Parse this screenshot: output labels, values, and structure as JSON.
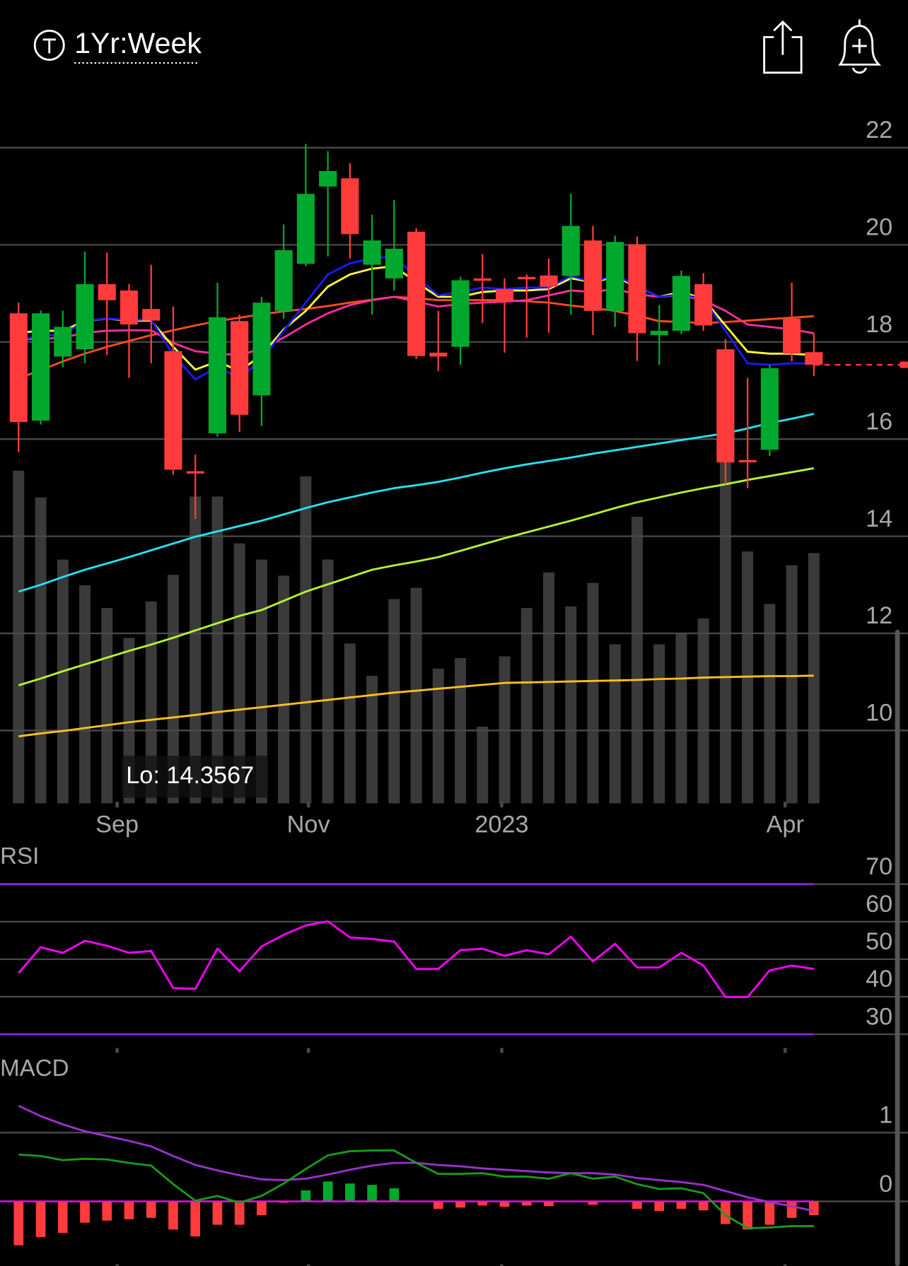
{
  "header": {
    "title": "1Yr:Week"
  },
  "chart_data": [
    {
      "type": "candlestick",
      "x": [
        0,
        1,
        2,
        3,
        4,
        5,
        6,
        7,
        8,
        9,
        10,
        11,
        12,
        13,
        14,
        15,
        16,
        17,
        18,
        19,
        20,
        21,
        22,
        23,
        24,
        25,
        26,
        27,
        28,
        29,
        30,
        31,
        32,
        33,
        34,
        35,
        36
      ],
      "xlim": [
        -0.84,
        40.26
      ],
      "xticks": [
        {
          "value": 4.46,
          "label": "Sep"
        },
        {
          "value": 13.12,
          "label": "Nov"
        },
        {
          "value": 21.87,
          "label": "2023"
        },
        {
          "value": 34.7,
          "label": "Apr"
        }
      ],
      "ylim": [
        8.5,
        22.88
      ],
      "yticks": [
        10,
        12,
        14,
        16,
        18,
        20,
        22
      ],
      "grid": true,
      "open": [
        18.59,
        16.38,
        17.7,
        17.85,
        19.19,
        19.06,
        18.68,
        17.81,
        15.34,
        16.12,
        18.43,
        16.9,
        18.64,
        19.61,
        21.2,
        21.37,
        19.59,
        19.31,
        20.27,
        17.78,
        17.9,
        19.31,
        19.09,
        19.34,
        19.37,
        19.36,
        20.09,
        18.64,
        20.01,
        18.14,
        18.23,
        19.19,
        17.85,
        15.57,
        15.78,
        18.48,
        17.79
      ],
      "high": [
        18.81,
        18.65,
        18.64,
        19.86,
        19.84,
        19.19,
        19.59,
        18.73,
        15.68,
        19.22,
        18.56,
        18.93,
        20.42,
        22.08,
        21.93,
        21.68,
        20.62,
        20.92,
        20.34,
        18.64,
        19.34,
        19.81,
        19.31,
        19.39,
        19.72,
        21.05,
        20.39,
        20.19,
        20.17,
        18.76,
        19.47,
        19.42,
        18.06,
        17.26,
        17.53,
        19.22,
        18.18
      ],
      "low": [
        15.73,
        16.3,
        17.48,
        17.56,
        17.73,
        17.26,
        17.56,
        15.27,
        14.36,
        16.05,
        16.15,
        16.27,
        18.48,
        19.56,
        19.76,
        19.72,
        18.56,
        19.06,
        17.65,
        17.4,
        17.53,
        18.39,
        17.78,
        18.09,
        18.19,
        18.56,
        18.14,
        18.31,
        17.61,
        17.53,
        18.16,
        18.23,
        15.07,
        14.99,
        15.65,
        17.6,
        17.3
      ],
      "close": [
        16.35,
        18.59,
        18.31,
        19.19,
        18.86,
        18.36,
        18.44,
        15.37,
        15.29,
        18.51,
        16.5,
        18.81,
        19.89,
        21.05,
        21.52,
        20.22,
        20.09,
        19.92,
        17.71,
        17.7,
        19.27,
        19.26,
        18.86,
        19.29,
        19.14,
        20.39,
        18.64,
        20.06,
        18.18,
        18.23,
        19.36,
        18.34,
        15.52,
        15.52,
        17.46,
        17.76,
        17.53
      ],
      "up_color": "#00a82d",
      "down_color": "#ff3b3b",
      "volume": {
        "color": "#3a3a3a",
        "ylim": [
          0,
          865
        ],
        "values": [
          412,
          379,
          302,
          270,
          242,
          205,
          250,
          283,
          380,
          380,
          322,
          302,
          282,
          405,
          302,
          198,
          158,
          253,
          267,
          167,
          180,
          95,
          182,
          242,
          286,
          244,
          273,
          197,
          355,
          197,
          210,
          229,
          435,
          312,
          247,
          295,
          310
        ]
      },
      "series": [
        {
          "color": "#ffc21a",
          "values": [
            9.88,
            9.94,
            9.99,
            10.05,
            10.11,
            10.17,
            10.22,
            10.27,
            10.32,
            10.38,
            10.43,
            10.48,
            10.53,
            10.58,
            10.63,
            10.68,
            10.73,
            10.78,
            10.82,
            10.86,
            10.9,
            10.94,
            10.98,
            10.99,
            11.0,
            11.01,
            11.02,
            11.03,
            11.04,
            11.06,
            11.07,
            11.09,
            11.1,
            11.11,
            11.12,
            11.12,
            11.13
          ]
        },
        {
          "color": "#b5f532",
          "values": [
            10.93,
            11.07,
            11.22,
            11.36,
            11.5,
            11.64,
            11.77,
            11.91,
            12.06,
            12.21,
            12.36,
            12.48,
            12.67,
            12.86,
            13.01,
            13.16,
            13.31,
            13.4,
            13.48,
            13.57,
            13.7,
            13.83,
            13.96,
            14.08,
            14.2,
            14.32,
            14.45,
            14.58,
            14.7,
            14.8,
            14.9,
            14.99,
            15.07,
            15.16,
            15.24,
            15.32,
            15.4
          ]
        },
        {
          "color": "#22e5f5",
          "values": [
            12.86,
            13.0,
            13.16,
            13.31,
            13.44,
            13.57,
            13.71,
            13.85,
            13.99,
            14.1,
            14.21,
            14.32,
            14.45,
            14.58,
            14.7,
            14.8,
            14.9,
            14.99,
            15.05,
            15.12,
            15.21,
            15.31,
            15.4,
            15.48,
            15.55,
            15.62,
            15.7,
            15.77,
            15.84,
            15.91,
            15.98,
            16.05,
            16.12,
            16.22,
            16.33,
            16.42,
            16.52
          ]
        },
        {
          "color": "#ff4d1a",
          "values": [
            17.25,
            17.42,
            17.6,
            17.76,
            17.9,
            18.02,
            18.14,
            18.24,
            18.34,
            18.43,
            18.5,
            18.57,
            18.63,
            18.68,
            18.74,
            18.81,
            18.87,
            18.93,
            18.9,
            18.86,
            18.86,
            18.86,
            18.86,
            18.84,
            18.81,
            18.75,
            18.7,
            18.64,
            18.54,
            18.43,
            18.41,
            18.39,
            18.41,
            18.44,
            18.47,
            18.5,
            18.53
          ]
        },
        {
          "color": "#ff2da0",
          "values": [
            18.06,
            18.06,
            18.09,
            18.19,
            18.23,
            18.24,
            18.24,
            17.98,
            17.81,
            17.76,
            17.73,
            17.86,
            18.09,
            18.36,
            18.59,
            18.76,
            18.86,
            18.93,
            18.83,
            18.73,
            18.78,
            18.81,
            18.83,
            18.86,
            18.96,
            19.06,
            19.03,
            19.09,
            18.98,
            18.93,
            18.96,
            18.86,
            18.64,
            18.36,
            18.31,
            18.26,
            18.18
          ]
        },
        {
          "color": "#ffff33",
          "values": [
            18.19,
            18.23,
            18.23,
            18.43,
            18.48,
            18.44,
            18.44,
            17.9,
            17.43,
            17.6,
            17.4,
            17.73,
            18.26,
            18.64,
            19.14,
            19.39,
            19.51,
            19.56,
            19.23,
            18.93,
            18.93,
            19.03,
            19.06,
            19.06,
            19.09,
            19.31,
            19.23,
            19.34,
            19.14,
            18.93,
            19.03,
            18.89,
            18.34,
            17.8,
            17.76,
            17.76,
            17.73
          ]
        },
        {
          "color": "#1a1aff",
          "values": [
            18.03,
            18.14,
            18.14,
            18.44,
            18.48,
            18.46,
            18.46,
            17.73,
            17.23,
            17.48,
            17.26,
            17.63,
            18.23,
            18.81,
            19.39,
            19.62,
            19.72,
            19.76,
            19.34,
            18.96,
            19.03,
            19.12,
            19.09,
            19.12,
            19.12,
            19.36,
            19.23,
            19.39,
            19.14,
            18.93,
            18.98,
            18.89,
            18.23,
            17.56,
            17.53,
            17.56,
            17.56
          ]
        }
      ],
      "last_price": 17.53,
      "last_price_color": "#ff3b3b",
      "annotation": "Lo: 14.3567"
    },
    {
      "type": "line",
      "title": "RSI",
      "ylim": [
        25.9,
        79.7
      ],
      "yticks": [
        30,
        40,
        50,
        60,
        70
      ],
      "grid": true,
      "levels": [
        30,
        70
      ],
      "level_color": "#8a2be2",
      "series": [
        {
          "color": "#ff00ff",
          "values": [
            46.3,
            53.2,
            51.7,
            54.9,
            53.6,
            51.7,
            52.2,
            42.3,
            42.1,
            52.8,
            46.8,
            53.4,
            56.5,
            59.0,
            60.1,
            55.8,
            55.4,
            54.7,
            47.4,
            47.4,
            52.4,
            52.8,
            50.9,
            52.4,
            51.3,
            56.0,
            49.4,
            54.1,
            47.8,
            47.8,
            51.7,
            48.3,
            39.9,
            39.9,
            47.0,
            48.3,
            47.4
          ]
        }
      ]
    },
    {
      "type": "macd",
      "title": "MACD",
      "ylim": [
        -0.94,
        2.09
      ],
      "yticks": [
        0,
        1
      ],
      "grid": true,
      "zero_line_color": "#ff00ff",
      "series": [
        {
          "color": "#9b30d0",
          "values": [
            1.39,
            1.24,
            1.12,
            1.02,
            0.95,
            0.88,
            0.8,
            0.66,
            0.53,
            0.45,
            0.38,
            0.32,
            0.31,
            0.33,
            0.39,
            0.46,
            0.52,
            0.56,
            0.56,
            0.53,
            0.51,
            0.48,
            0.46,
            0.44,
            0.42,
            0.41,
            0.41,
            0.39,
            0.34,
            0.31,
            0.28,
            0.24,
            0.15,
            0.06,
            -0.01,
            -0.07,
            -0.14
          ]
        },
        {
          "color": "#1a9a1a",
          "values": [
            0.68,
            0.66,
            0.6,
            0.62,
            0.61,
            0.56,
            0.52,
            0.25,
            0.01,
            0.08,
            -0.02,
            0.08,
            0.26,
            0.47,
            0.67,
            0.73,
            0.74,
            0.74,
            0.56,
            0.4,
            0.4,
            0.41,
            0.36,
            0.36,
            0.33,
            0.41,
            0.33,
            0.36,
            0.25,
            0.18,
            0.19,
            0.12,
            -0.2,
            -0.39,
            -0.38,
            -0.36,
            -0.36
          ]
        }
      ],
      "histogram": {
        "up_color": "#00a82d",
        "down_color": "#ff3b3b",
        "values": [
          -0.64,
          -0.52,
          -0.46,
          -0.31,
          -0.28,
          -0.26,
          -0.24,
          -0.41,
          -0.51,
          -0.34,
          -0.34,
          -0.2,
          -0.02,
          0.16,
          0.29,
          0.26,
          0.24,
          0.19,
          -0.01,
          -0.11,
          -0.09,
          -0.06,
          -0.08,
          -0.06,
          -0.07,
          0,
          -0.05,
          -0.01,
          -0.11,
          -0.14,
          -0.11,
          -0.13,
          -0.33,
          -0.41,
          -0.34,
          -0.24,
          -0.2
        ]
      }
    }
  ]
}
